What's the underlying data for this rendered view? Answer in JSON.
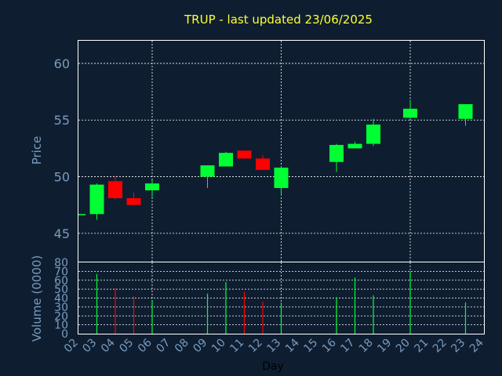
{
  "chart_data": {
    "type": "candlestick",
    "title": "TRUP - last updated 23/06/2025",
    "xlabel": "Day",
    "x_ticks": [
      "02",
      "03",
      "04",
      "05",
      "06",
      "07",
      "08",
      "09",
      "10",
      "11",
      "12",
      "13",
      "14",
      "15",
      "16",
      "17",
      "18",
      "19",
      "20",
      "21",
      "22",
      "23",
      "24"
    ],
    "price_panel": {
      "ylabel": "Price",
      "ylim": [
        42.5,
        62
      ],
      "y_ticks": [
        45,
        50,
        55,
        60
      ],
      "grid": true,
      "candles": [
        {
          "day": 2,
          "open": 46.7,
          "high": 46.7,
          "low": 46.6,
          "close": 46.7
        },
        {
          "day": 3,
          "open": 46.7,
          "high": 49.4,
          "low": 46.2,
          "close": 49.3
        },
        {
          "day": 4,
          "open": 49.6,
          "high": 50.1,
          "low": 48.0,
          "close": 48.1
        },
        {
          "day": 5,
          "open": 48.1,
          "high": 48.6,
          "low": 47.5,
          "close": 47.5
        },
        {
          "day": 6,
          "open": 48.8,
          "high": 49.7,
          "low": 48.2,
          "close": 49.4
        },
        {
          "day": 9,
          "open": 50.0,
          "high": 51.0,
          "low": 49.0,
          "close": 51.0
        },
        {
          "day": 10,
          "open": 50.9,
          "high": 52.2,
          "low": 50.9,
          "close": 52.1
        },
        {
          "day": 11,
          "open": 52.3,
          "high": 52.3,
          "low": 51.6,
          "close": 51.6
        },
        {
          "day": 12,
          "open": 51.6,
          "high": 51.9,
          "low": 50.6,
          "close": 50.6
        },
        {
          "day": 13,
          "open": 49.0,
          "high": 50.9,
          "low": 48.3,
          "close": 50.8
        },
        {
          "day": 16,
          "open": 51.3,
          "high": 52.9,
          "low": 50.4,
          "close": 52.8
        },
        {
          "day": 17,
          "open": 52.5,
          "high": 53.1,
          "low": 52.5,
          "close": 52.9
        },
        {
          "day": 18,
          "open": 52.9,
          "high": 55.1,
          "low": 52.7,
          "close": 54.6
        },
        {
          "day": 20,
          "open": 55.2,
          "high": 56.8,
          "low": 55.1,
          "close": 56.0
        },
        {
          "day": 23,
          "open": 55.1,
          "high": 56.4,
          "low": 54.5,
          "close": 56.4
        }
      ]
    },
    "volume_panel": {
      "ylabel": "Volume (0000)",
      "ylim": [
        0,
        80
      ],
      "y_ticks": [
        0,
        10,
        20,
        30,
        40,
        50,
        60,
        70,
        80
      ],
      "grid": true,
      "bars": [
        {
          "day": 3,
          "value": 67,
          "direction": "up"
        },
        {
          "day": 4,
          "value": 51,
          "direction": "down"
        },
        {
          "day": 5,
          "value": 42,
          "direction": "down"
        },
        {
          "day": 6,
          "value": 38,
          "direction": "up"
        },
        {
          "day": 9,
          "value": 45,
          "direction": "up"
        },
        {
          "day": 10,
          "value": 58,
          "direction": "up"
        },
        {
          "day": 11,
          "value": 47,
          "direction": "down"
        },
        {
          "day": 12,
          "value": 36,
          "direction": "down"
        },
        {
          "day": 13,
          "value": 35,
          "direction": "up"
        },
        {
          "day": 16,
          "value": 41,
          "direction": "up"
        },
        {
          "day": 17,
          "value": 63,
          "direction": "up"
        },
        {
          "day": 18,
          "value": 43,
          "direction": "up"
        },
        {
          "day": 20,
          "value": 70,
          "direction": "up"
        },
        {
          "day": 23,
          "value": 35,
          "direction": "up"
        }
      ]
    },
    "colors": {
      "background": "#0e1e30",
      "up": "#00ff33",
      "down": "#ff0000",
      "title": "#ffff33",
      "axis_text": "#7a9bc0",
      "frame": "#ffffff"
    }
  }
}
